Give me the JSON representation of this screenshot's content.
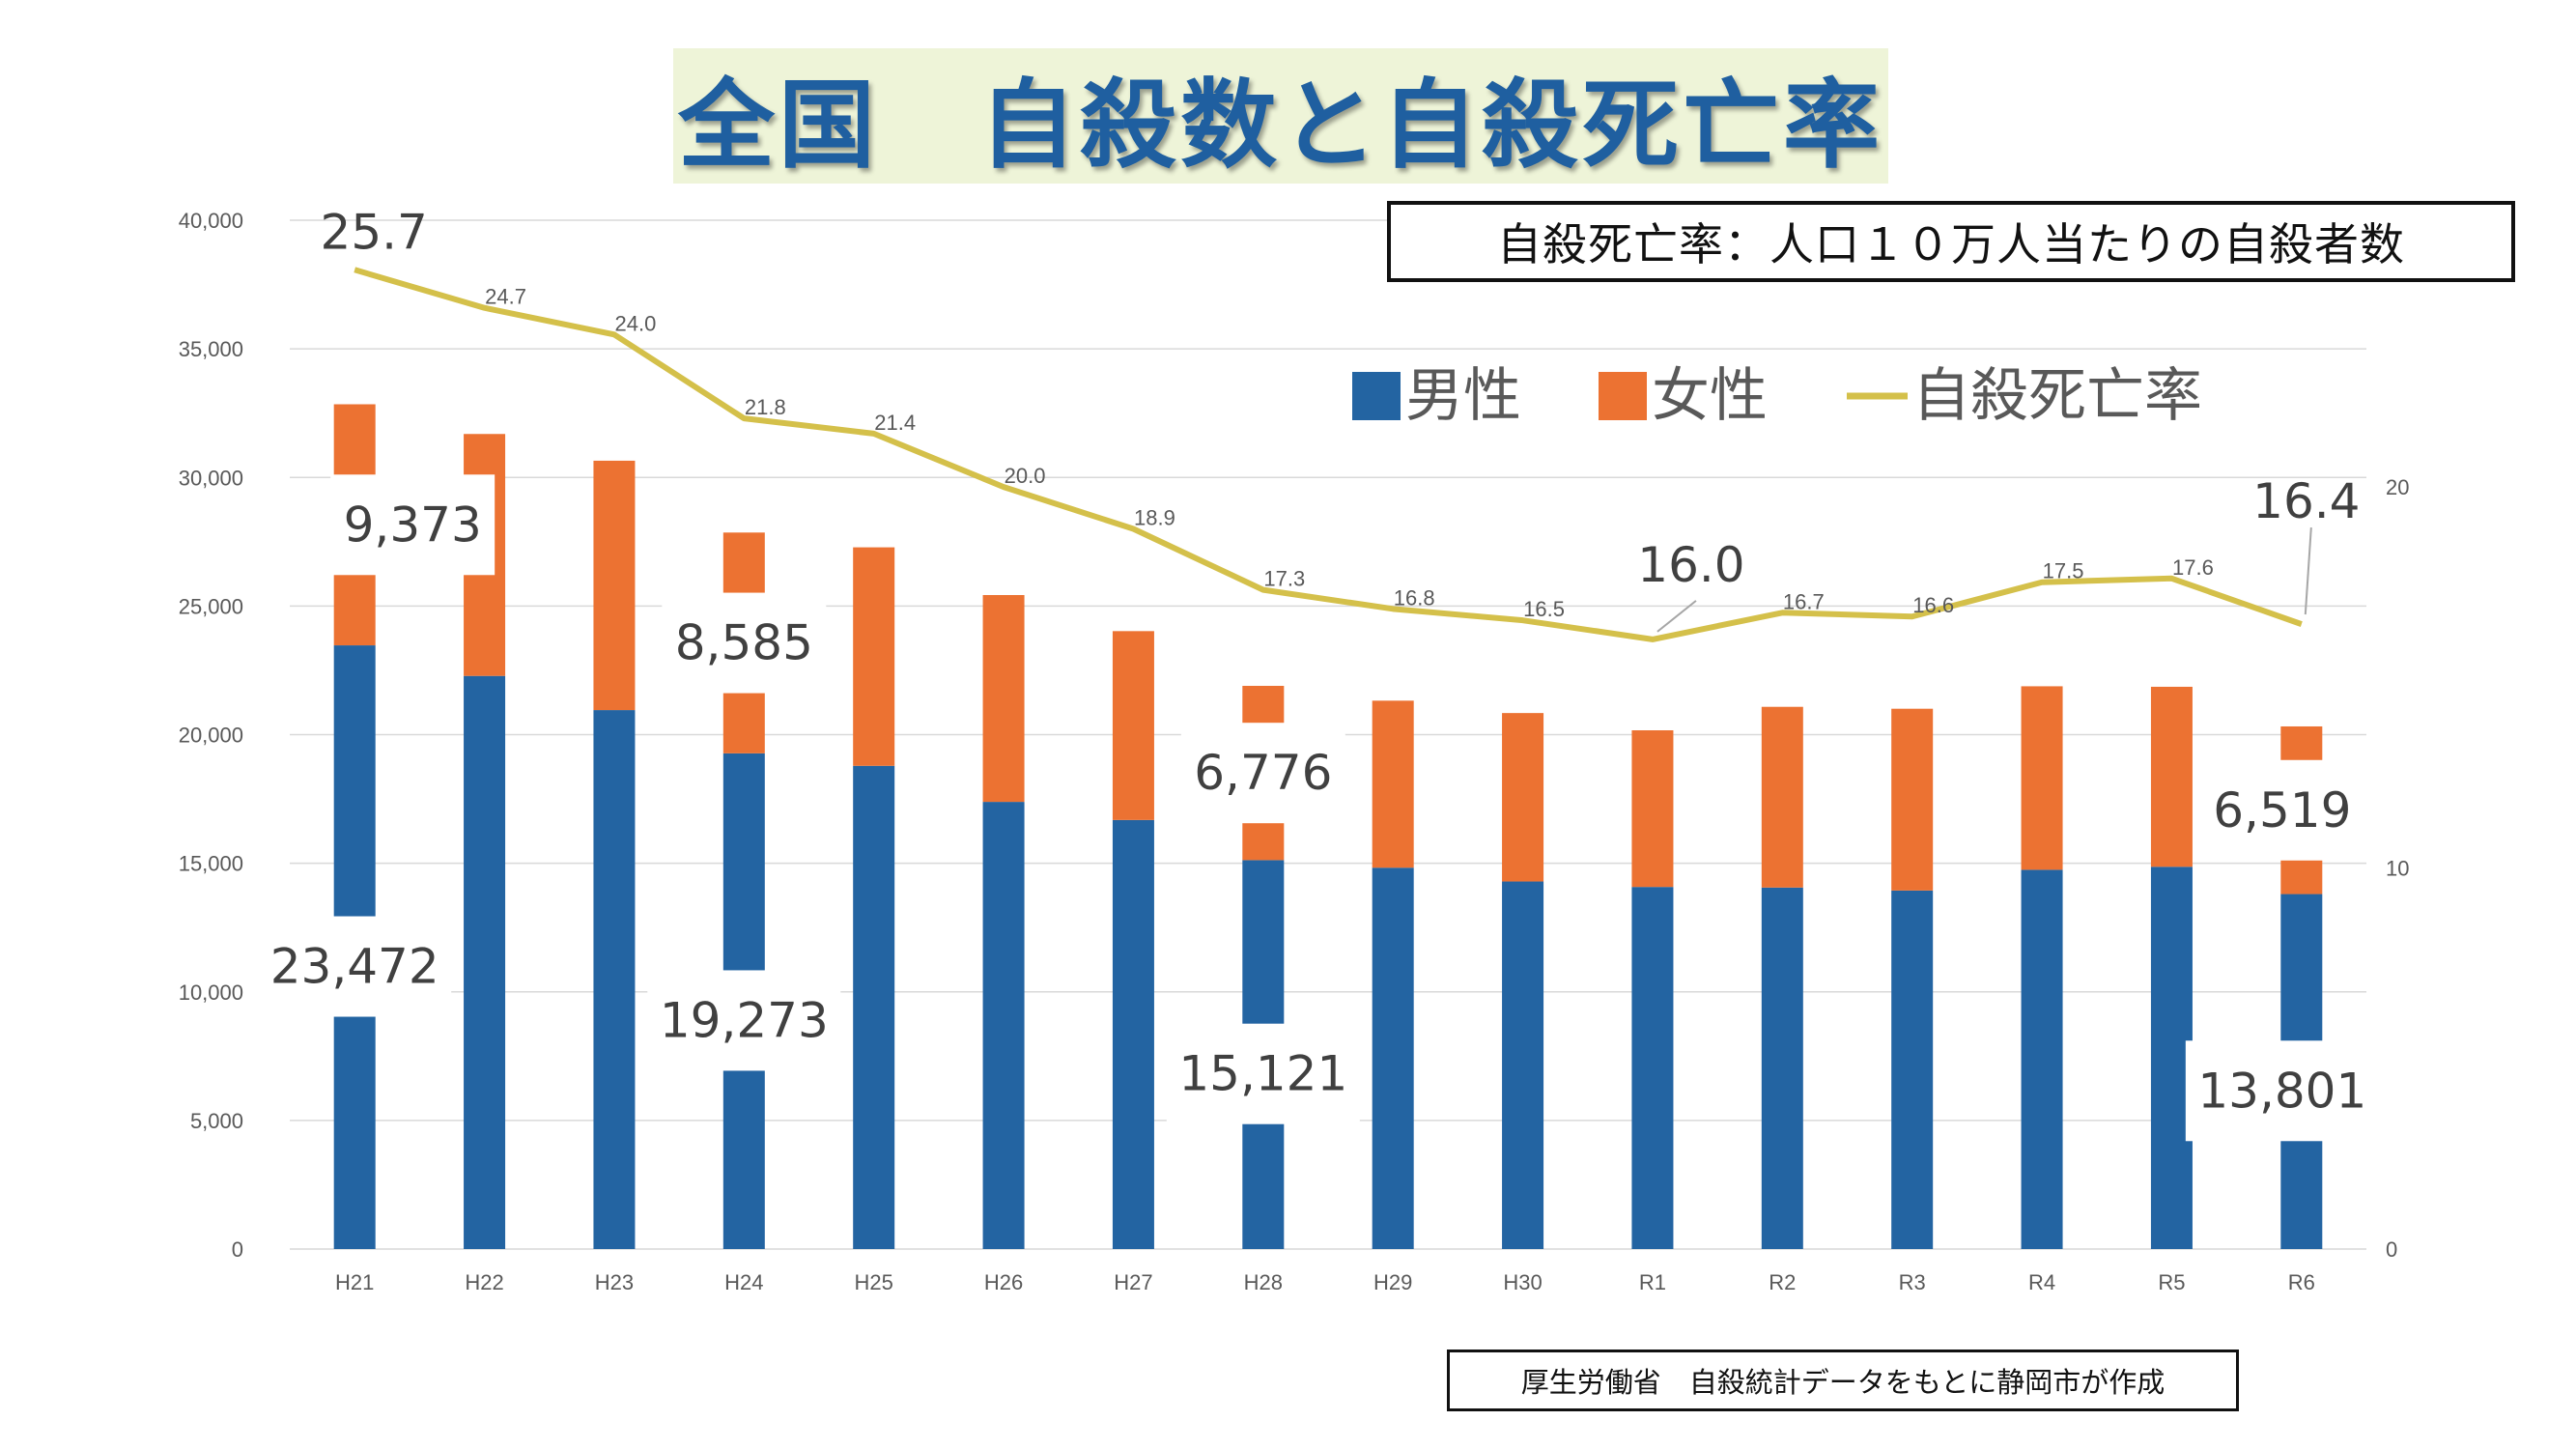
{
  "title": "全国　自殺数と自殺死亡率",
  "definition": "自殺死亡率：人口１０万人当たりの自殺者数",
  "source": "厚生労働省　自殺統計データをもとに静岡市が作成",
  "colors": {
    "male": "#2364a2",
    "female": "#ec7232",
    "rate": "#d4c04a",
    "grid": "#d9d9d9",
    "title_bg": "#eef4d8",
    "title_text": "#1f5fa0"
  },
  "chart_data": {
    "type": "bar",
    "stacked": true,
    "categories": [
      "H21",
      "H22",
      "H23",
      "H24",
      "H25",
      "H26",
      "H27",
      "H28",
      "H29",
      "H30",
      "R1",
      "R2",
      "R3",
      "R4",
      "R5",
      "R6"
    ],
    "series": [
      {
        "name": "男性",
        "axis": "left",
        "values": [
          23472,
          22283,
          20955,
          19273,
          18787,
          17386,
          16681,
          15121,
          14826,
          14290,
          14078,
          14055,
          13939,
          14746,
          14862,
          13801
        ]
      },
      {
        "name": "女性",
        "axis": "left",
        "values": [
          9373,
          9407,
          9696,
          8585,
          8496,
          8041,
          7344,
          6776,
          6495,
          6550,
          6091,
          7026,
          7068,
          7135,
          6999,
          6519
        ]
      },
      {
        "name": "自殺死亡率",
        "type": "line",
        "axis": "right",
        "values": [
          25.7,
          24.7,
          24.0,
          21.8,
          21.4,
          20.0,
          18.9,
          17.3,
          16.8,
          16.5,
          16.0,
          16.7,
          16.6,
          17.5,
          17.6,
          16.4
        ]
      }
    ],
    "left_axis": {
      "ylim": [
        0,
        40000
      ],
      "ticks": [
        "0",
        "5,000",
        "10,000",
        "15,000",
        "20,000",
        "25,000",
        "30,000",
        "35,000",
        "40,000"
      ]
    },
    "right_axis": {
      "ylim": [
        0,
        27
      ],
      "ticks": [
        "0",
        "10",
        "20"
      ]
    },
    "grid": true,
    "legend_position": "top-right",
    "rate_labels": [
      "25.7",
      "24.7",
      "24.0",
      "21.8",
      "21.4",
      "20.0",
      "18.9",
      "17.3",
      "16.8",
      "16.5",
      "16.0",
      "16.7",
      "16.6",
      "17.5",
      "17.6",
      "16.4"
    ],
    "highlight_labels": [
      {
        "index": 0,
        "male": "23,472",
        "female": "9,373"
      },
      {
        "index": 3,
        "male": "19,273",
        "female": "8,585"
      },
      {
        "index": 7,
        "male": "15,121",
        "female": "6,776"
      },
      {
        "index": 15,
        "male": "13,801",
        "female": "6,519"
      }
    ]
  }
}
